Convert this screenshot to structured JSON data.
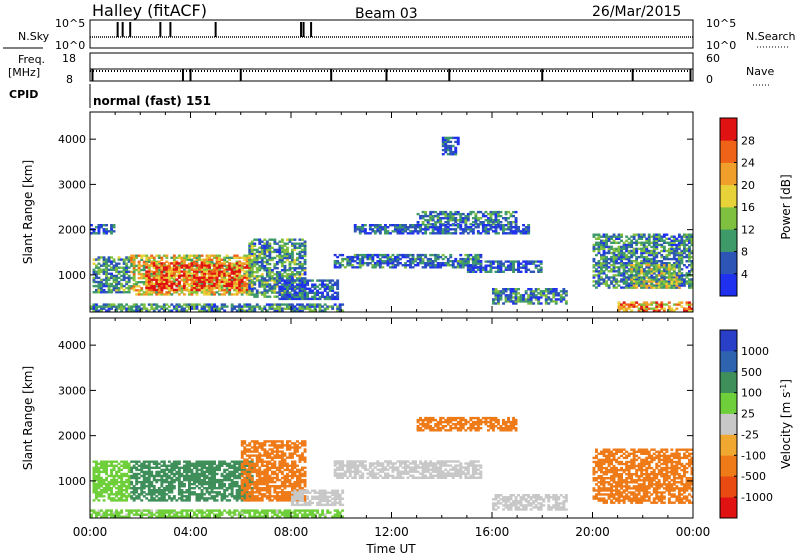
{
  "header": {
    "station": "Halley (fitACF)",
    "beam": "Beam 03",
    "date": "26/Mar/2015"
  },
  "top_panels": {
    "nsky_label": "N.Sky",
    "nsky_ticks": [
      "10^5",
      "10^0"
    ],
    "nsearch_label": "N.Search",
    "nsearch_ticks": [
      "10^5",
      "10^0"
    ],
    "freq_label_1": "Freq.",
    "freq_label_2": "[MHz]",
    "freq_ticks": [
      "18",
      "8"
    ],
    "nave_label": "Nave",
    "nave_ticks": [
      "60",
      "0"
    ],
    "cpid_label": "CPID",
    "cpid_value": "normal (fast) 151",
    "nsky_spike_hours": [
      1.1,
      1.3,
      1.6,
      2.8,
      3.2,
      5.0,
      8.4,
      8.5,
      8.8
    ],
    "freq_drop_hours": [
      0.1,
      3.7,
      4.0,
      6.0,
      9.6,
      11.8,
      14.3,
      18.0,
      21.6,
      23.9
    ]
  },
  "chart_data": [
    {
      "type": "heatmap",
      "name": "power-panel",
      "x_range_hours": [
        0,
        24
      ],
      "ylim": [
        180,
        4600
      ],
      "ylabel": "Slant Range [km]",
      "yticks": [
        1000,
        2000,
        3000,
        4000
      ],
      "colorbar_label": "Power [dB]",
      "colorbar_ticks": [
        "4",
        "8",
        "12",
        "16",
        "20",
        "24",
        "28"
      ],
      "colorbar_colors": [
        "#1f31ee",
        "#2d55b5",
        "#3f9a6a",
        "#7fc040",
        "#e8d23a",
        "#f0a02a",
        "#ef6318",
        "#e01212"
      ],
      "regions": [
        {
          "t0": 0.1,
          "t1": 1.6,
          "r0": 600,
          "r1": 1400,
          "v": 10
        },
        {
          "t0": 1.6,
          "t1": 6.4,
          "r0": 550,
          "r1": 1450,
          "v": 18
        },
        {
          "t0": 2.2,
          "t1": 6.3,
          "r0": 650,
          "r1": 1250,
          "v": 27
        },
        {
          "t0": 6.3,
          "t1": 8.5,
          "r0": 500,
          "r1": 1800,
          "v": 10
        },
        {
          "t0": 7.5,
          "t1": 9.8,
          "r0": 450,
          "r1": 900,
          "v": 6
        },
        {
          "t0": 0.0,
          "t1": 0.9,
          "r0": 1900,
          "r1": 2100,
          "v": 5
        },
        {
          "t0": 9.7,
          "t1": 15.5,
          "r0": 1150,
          "r1": 1450,
          "v": 7
        },
        {
          "t0": 15.0,
          "t1": 18.0,
          "r0": 1050,
          "r1": 1300,
          "v": 6
        },
        {
          "t0": 14.0,
          "t1": 14.6,
          "r0": 3650,
          "r1": 4050,
          "v": 5
        },
        {
          "t0": 13.0,
          "t1": 17.0,
          "r0": 2100,
          "r1": 2400,
          "v": 8
        },
        {
          "t0": 10.5,
          "t1": 17.5,
          "r0": 1900,
          "r1": 2100,
          "v": 5
        },
        {
          "t0": 16.0,
          "t1": 19.0,
          "r0": 350,
          "r1": 700,
          "v": 8
        },
        {
          "t0": 20.0,
          "t1": 24.0,
          "r0": 700,
          "r1": 1900,
          "v": 9
        },
        {
          "t0": 21.5,
          "t1": 23.5,
          "r0": 700,
          "r1": 1200,
          "v": 15
        },
        {
          "t0": 21.0,
          "t1": 24.0,
          "r0": 190,
          "r1": 400,
          "v": 24
        },
        {
          "t0": 0.0,
          "t1": 10.0,
          "r0": 190,
          "r1": 350,
          "v": 9
        }
      ]
    },
    {
      "type": "heatmap",
      "name": "velocity-panel",
      "x_range_hours": [
        0,
        24
      ],
      "ylim": [
        180,
        4600
      ],
      "ylabel": "Slant Range [km]",
      "yticks": [
        1000,
        2000,
        3000,
        4000
      ],
      "xlabel": "Time UT",
      "xticks": [
        "00:00",
        "04:00",
        "08:00",
        "12:00",
        "16:00",
        "20:00",
        "00:00"
      ],
      "colorbar_label": "Velocity [m s^-1]",
      "colorbar_ticks": [
        "1000",
        "500",
        "100",
        "25",
        "-25",
        "-100",
        "-500",
        "-1000"
      ],
      "colorbar_colors": [
        "#2a3fc8",
        "#2e63b0",
        "#3f8f5a",
        "#6fcf3a",
        "#c8c8c8",
        "#f0a830",
        "#ef7a18",
        "#e84a12",
        "#e01212"
      ],
      "regions": [
        {
          "t0": 0.1,
          "t1": 1.6,
          "r0": 550,
          "r1": 1450,
          "v": 60
        },
        {
          "t0": 1.6,
          "t1": 6.4,
          "r0": 550,
          "r1": 1450,
          "v": 150
        },
        {
          "t0": 6.0,
          "t1": 8.5,
          "r0": 550,
          "r1": 1900,
          "v": -200
        },
        {
          "t0": 8.0,
          "t1": 10.0,
          "r0": 450,
          "r1": 800,
          "v": 0
        },
        {
          "t0": 9.7,
          "t1": 15.5,
          "r0": 1050,
          "r1": 1450,
          "v": 0
        },
        {
          "t0": 13.0,
          "t1": 17.0,
          "r0": 2100,
          "r1": 2400,
          "v": -200
        },
        {
          "t0": 16.0,
          "t1": 19.0,
          "r0": 350,
          "r1": 700,
          "v": 0
        },
        {
          "t0": 20.0,
          "t1": 24.0,
          "r0": 500,
          "r1": 1700,
          "v": -300
        },
        {
          "t0": 0.0,
          "t1": 10.0,
          "r0": 190,
          "r1": 350,
          "v": 40
        }
      ]
    }
  ]
}
